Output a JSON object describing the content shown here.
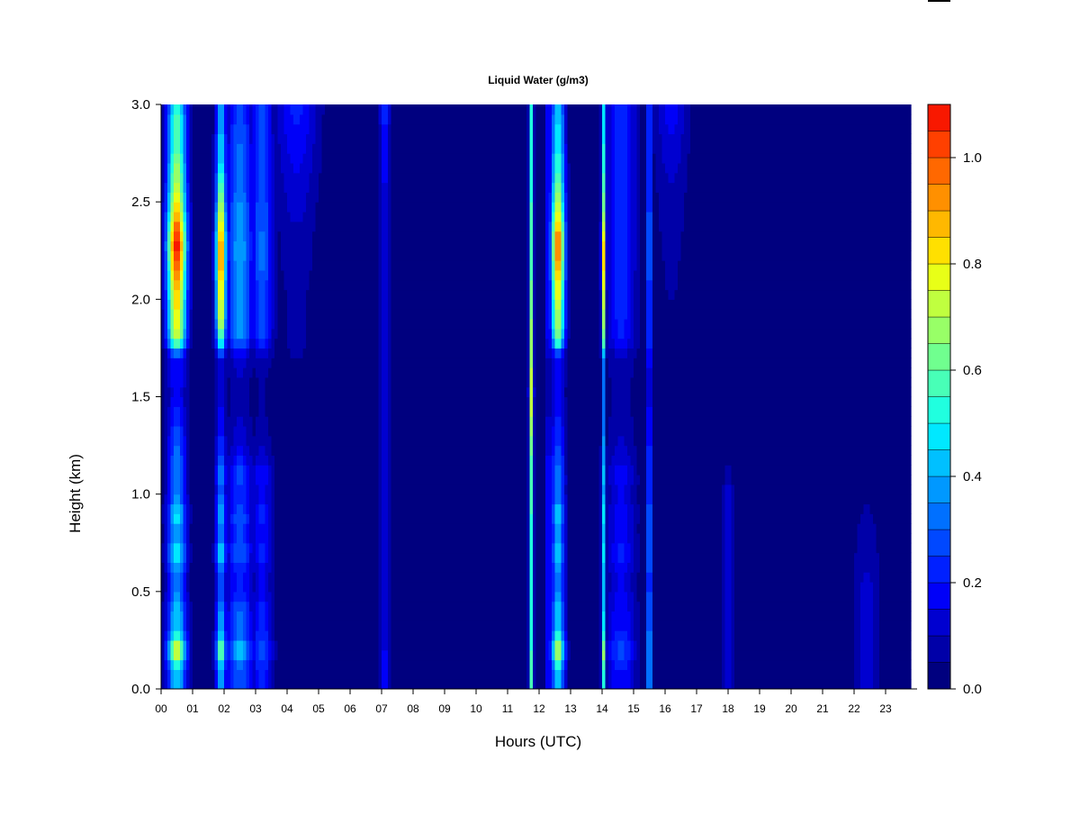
{
  "chart_data": {
    "type": "heatmap",
    "title": "Liquid Water (g/m3)",
    "xlabel": "Hours (UTC)",
    "ylabel": "Height (km)",
    "xlim": [
      0,
      24
    ],
    "ylim": [
      0,
      3
    ],
    "x_ticks": [
      "00",
      "01",
      "02",
      "03",
      "04",
      "05",
      "06",
      "07",
      "08",
      "09",
      "10",
      "11",
      "12",
      "13",
      "14",
      "15",
      "16",
      "17",
      "18",
      "19",
      "20",
      "21",
      "22",
      "23"
    ],
    "y_ticks": [
      "0.0",
      "0.5",
      "1.0",
      "1.5",
      "2.0",
      "2.5",
      "3.0"
    ],
    "colorbar": {
      "min": 0.0,
      "max": 1.1,
      "step": 0.05,
      "tick_values": [
        0.0,
        0.2,
        0.4,
        0.6,
        0.8,
        1.0
      ],
      "tick_labels": [
        "0.0",
        "0.2",
        "0.4",
        "0.6",
        "0.8",
        "1.0"
      ],
      "colors": [
        "#00007f",
        "#0000a8",
        "#0000d0",
        "#0000f8",
        "#0020ff",
        "#0048ff",
        "#0070ff",
        "#0098ff",
        "#00c0ff",
        "#00e8ff",
        "#20ffdf",
        "#48ffb7",
        "#70ff8f",
        "#98ff67",
        "#c0ff3f",
        "#e8ff17",
        "#ffe000",
        "#ffb800",
        "#ff9000",
        "#ff6800",
        "#ff4000",
        "#f81800",
        "#d00000",
        "#a80000",
        "#7f0000"
      ]
    },
    "background_value": 0.02,
    "cloud_events": [
      {
        "hour": 0.5,
        "width_h": 0.22,
        "profile": [
          0.45,
          0.45,
          0.85,
          0.45,
          0.45,
          0.35,
          0.35,
          0.55,
          0.35,
          0.5,
          0.32,
          0.35,
          0.32,
          0.28,
          0.22,
          0.18,
          0.2,
          0.2,
          0.75,
          0.78,
          0.85,
          0.92,
          1.05,
          1.1,
          0.95,
          0.82,
          0.72,
          0.66,
          0.6,
          0.58,
          0.55
        ]
      },
      {
        "hour": 1.9,
        "width_h": 0.12,
        "profile": [
          0.4,
          0.4,
          0.7,
          0.4,
          0.4,
          0.3,
          0.3,
          0.5,
          0.3,
          0.45,
          0.3,
          0.35,
          0.28,
          0.22,
          0.18,
          0.14,
          0.16,
          0.16,
          0.62,
          0.75,
          0.82,
          0.88,
          0.95,
          0.92,
          0.8,
          0.68,
          0.58,
          0.5,
          0.46,
          0.42,
          0.4
        ]
      },
      {
        "hour": 2.5,
        "width_h": 0.3,
        "profile": [
          0.3,
          0.3,
          0.45,
          0.3,
          0.32,
          0.22,
          0.22,
          0.32,
          0.25,
          0.3,
          0.22,
          0.28,
          0.18,
          0.12,
          0.1,
          0.08,
          0.1,
          0.12,
          0.35,
          0.38,
          0.36,
          0.36,
          0.4,
          0.4,
          0.38,
          0.35,
          0.32,
          0.32,
          0.3,
          0.28,
          0.28
        ]
      },
      {
        "hour": 3.2,
        "width_h": 0.25,
        "profile": [
          0.22,
          0.22,
          0.32,
          0.22,
          0.22,
          0.16,
          0.16,
          0.22,
          0.18,
          0.22,
          0.16,
          0.2,
          0.12,
          0.08,
          0.06,
          0.05,
          0.06,
          0.1,
          0.25,
          0.28,
          0.28,
          0.3,
          0.32,
          0.32,
          0.3,
          0.3,
          0.28,
          0.28,
          0.28,
          0.26,
          0.26
        ]
      },
      {
        "hour": 4.3,
        "width_h": 0.5,
        "profile": [
          0.04,
          0.04,
          0.05,
          0.04,
          0.04,
          0.04,
          0.04,
          0.04,
          0.04,
          0.04,
          0.04,
          0.04,
          0.04,
          0.04,
          0.04,
          0.04,
          0.05,
          0.05,
          0.06,
          0.06,
          0.06,
          0.07,
          0.08,
          0.08,
          0.1,
          0.12,
          0.14,
          0.16,
          0.18,
          0.2,
          0.22
        ]
      },
      {
        "hour": 7.1,
        "width_h": 0.12,
        "profile": [
          0.18,
          0.18,
          0.16,
          0.15,
          0.14,
          0.14,
          0.14,
          0.14,
          0.14,
          0.14,
          0.14,
          0.14,
          0.14,
          0.14,
          0.14,
          0.14,
          0.14,
          0.14,
          0.14,
          0.14,
          0.14,
          0.14,
          0.14,
          0.14,
          0.15,
          0.15,
          0.16,
          0.18,
          0.2,
          0.22,
          0.22
        ]
      },
      {
        "hour": 11.75,
        "width_h": 0.05,
        "profile": [
          0.55,
          0.55,
          0.55,
          0.5,
          0.5,
          0.5,
          0.5,
          0.5,
          0.5,
          0.55,
          0.55,
          0.6,
          0.6,
          0.65,
          0.7,
          0.75,
          0.72,
          0.68,
          0.7,
          0.65,
          0.62,
          0.6,
          0.58,
          0.55,
          0.55,
          0.55,
          0.5,
          0.5,
          0.5,
          0.5,
          0.5
        ]
      },
      {
        "hour": 12.6,
        "width_h": 0.16,
        "profile": [
          0.45,
          0.45,
          0.78,
          0.45,
          0.45,
          0.35,
          0.35,
          0.5,
          0.35,
          0.5,
          0.32,
          0.35,
          0.3,
          0.25,
          0.2,
          0.16,
          0.18,
          0.18,
          0.65,
          0.72,
          0.78,
          0.85,
          0.95,
          0.98,
          0.85,
          0.72,
          0.62,
          0.56,
          0.5,
          0.48,
          0.45
        ]
      },
      {
        "hour": 12.3,
        "width_h": 0.08,
        "profile": [
          0.22,
          0.22,
          0.25,
          0.22,
          0.22,
          0.2,
          0.2,
          0.22,
          0.2,
          0.22,
          0.2,
          0.2,
          0.18,
          0.15,
          0.12,
          0.1,
          0.1,
          0.12,
          0.2,
          0.22,
          0.22,
          0.22,
          0.22,
          0.22,
          0.22,
          0.2,
          0.2,
          0.2,
          0.2,
          0.2,
          0.2
        ]
      },
      {
        "hour": 14.05,
        "width_h": 0.05,
        "profile": [
          0.5,
          0.5,
          0.7,
          0.45,
          0.45,
          0.4,
          0.4,
          0.5,
          0.4,
          0.5,
          0.38,
          0.42,
          0.38,
          0.35,
          0.32,
          0.3,
          0.32,
          0.34,
          0.62,
          0.68,
          0.72,
          0.78,
          0.85,
          0.8,
          0.72,
          0.62,
          0.56,
          0.52,
          0.5,
          0.48,
          0.46
        ]
      },
      {
        "hour": 14.6,
        "width_h": 0.35,
        "profile": [
          0.2,
          0.2,
          0.28,
          0.2,
          0.2,
          0.16,
          0.16,
          0.22,
          0.16,
          0.2,
          0.15,
          0.18,
          0.12,
          0.1,
          0.08,
          0.08,
          0.08,
          0.1,
          0.2,
          0.22,
          0.22,
          0.22,
          0.24,
          0.24,
          0.24,
          0.24,
          0.24,
          0.24,
          0.24,
          0.24,
          0.24
        ]
      },
      {
        "hour": 15.5,
        "width_h": 0.06,
        "profile": [
          0.45,
          0.45,
          0.5,
          0.42,
          0.42,
          0.35,
          0.35,
          0.42,
          0.36,
          0.42,
          0.32,
          0.35,
          0.3,
          0.26,
          0.22,
          0.2,
          0.2,
          0.22,
          0.32,
          0.35,
          0.35,
          0.35,
          0.38,
          0.38,
          0.36,
          0.35,
          0.34,
          0.34,
          0.34,
          0.34,
          0.34
        ]
      },
      {
        "hour": 16.2,
        "width_h": 0.4,
        "profile": [
          0.04,
          0.04,
          0.04,
          0.04,
          0.04,
          0.04,
          0.04,
          0.04,
          0.04,
          0.04,
          0.04,
          0.04,
          0.04,
          0.04,
          0.04,
          0.04,
          0.04,
          0.04,
          0.05,
          0.05,
          0.05,
          0.06,
          0.06,
          0.07,
          0.08,
          0.09,
          0.1,
          0.12,
          0.14,
          0.16,
          0.18
        ]
      },
      {
        "hour": 18.0,
        "width_h": 0.12,
        "profile": [
          0.16,
          0.16,
          0.16,
          0.16,
          0.16,
          0.16,
          0.14,
          0.14,
          0.14,
          0.14,
          0.12,
          0.08,
          0.04,
          0.03,
          0.02,
          0.02,
          0.02,
          0.02,
          0.02,
          0.02,
          0.02,
          0.02,
          0.02,
          0.02,
          0.02,
          0.02,
          0.02,
          0.02,
          0.02,
          0.02,
          0.02
        ]
      },
      {
        "hour": 22.4,
        "width_h": 0.3,
        "profile": [
          0.14,
          0.14,
          0.14,
          0.12,
          0.12,
          0.12,
          0.1,
          0.1,
          0.08,
          0.06,
          0.04,
          0.03,
          0.02,
          0.02,
          0.02,
          0.02,
          0.02,
          0.02,
          0.02,
          0.02,
          0.02,
          0.02,
          0.02,
          0.02,
          0.02,
          0.02,
          0.02,
          0.02,
          0.02,
          0.02,
          0.02
        ]
      }
    ],
    "dark_gaps_h": [
      1.5,
      11.95,
      13.75
    ]
  }
}
